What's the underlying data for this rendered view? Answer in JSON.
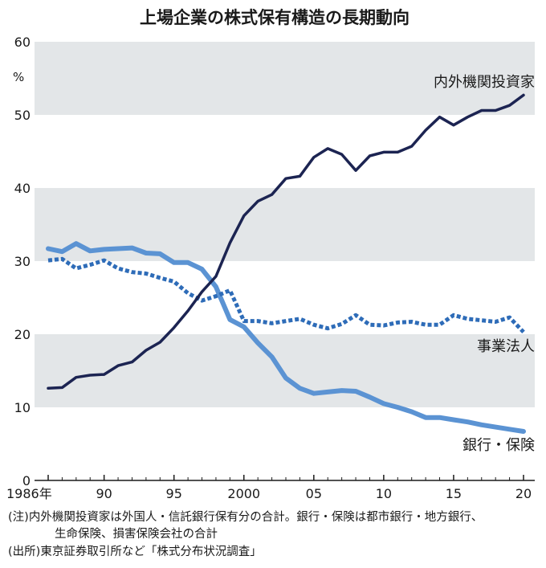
{
  "chart_data": {
    "type": "line",
    "title": "上場企業の株式保有構造の長期動向",
    "ylabel": "%",
    "ylim": [
      0,
      60
    ],
    "yticks": [
      "0",
      "10",
      "20",
      "30",
      "40",
      "50",
      "60"
    ],
    "xlim": [
      1986,
      2020
    ],
    "xticks": [
      {
        "x": 1986,
        "label": "1986年"
      },
      {
        "x": 1990,
        "label": "90"
      },
      {
        "x": 1995,
        "label": "95"
      },
      {
        "x": 2000,
        "label": "2000"
      },
      {
        "x": 2005,
        "label": "05"
      },
      {
        "x": 2010,
        "label": "10"
      },
      {
        "x": 2015,
        "label": "15"
      },
      {
        "x": 2020,
        "label": "20"
      }
    ],
    "grid_bands": "alternating gray bands every 10%",
    "x": [
      1986,
      1987,
      1988,
      1989,
      1990,
      1991,
      1992,
      1993,
      1994,
      1995,
      1996,
      1997,
      1998,
      1999,
      2000,
      2001,
      2002,
      2003,
      2004,
      2005,
      2006,
      2007,
      2008,
      2009,
      2010,
      2011,
      2012,
      2013,
      2014,
      2015,
      2016,
      2017,
      2018,
      2019,
      2020
    ],
    "series": [
      {
        "name": "内外機関投資家",
        "color": "#1c2452",
        "style": "solid",
        "values": [
          12.6,
          12.7,
          14.1,
          14.4,
          14.5,
          15.7,
          16.2,
          17.8,
          18.9,
          20.9,
          23.2,
          25.8,
          27.9,
          32.5,
          36.2,
          38.2,
          39.1,
          41.3,
          41.6,
          44.2,
          45.4,
          44.6,
          42.4,
          44.4,
          44.9,
          44.9,
          45.7,
          47.9,
          49.7,
          48.6,
          49.7,
          50.6,
          50.6,
          51.3,
          52.7
        ]
      },
      {
        "name": "事業法人",
        "color": "#2e6cb8",
        "style": "dotted",
        "values": [
          30.1,
          30.3,
          29.0,
          29.5,
          30.1,
          29.0,
          28.5,
          28.3,
          27.7,
          27.2,
          25.6,
          24.6,
          25.2,
          26.0,
          21.8,
          21.8,
          21.5,
          21.8,
          22.1,
          21.3,
          20.8,
          21.4,
          22.6,
          21.3,
          21.2,
          21.6,
          21.7,
          21.3,
          21.3,
          22.6,
          22.1,
          21.9,
          21.7,
          22.3,
          20.3
        ]
      },
      {
        "name": "銀行・保険",
        "color": "#5b93d3",
        "style": "solid",
        "values": [
          31.7,
          31.3,
          32.4,
          31.4,
          31.6,
          31.7,
          31.8,
          31.1,
          31.0,
          29.8,
          29.8,
          28.9,
          26.5,
          22.0,
          21.0,
          18.8,
          16.9,
          14.0,
          12.6,
          11.9,
          12.1,
          12.3,
          12.2,
          11.4,
          10.5,
          10.0,
          9.4,
          8.6,
          8.6,
          8.3,
          8.0,
          7.6,
          7.3,
          7.0,
          6.7
        ]
      }
    ]
  },
  "notes": {
    "line1": "(注)内外機関投資家は外国人・信託銀行保有分の合計。銀行・保険は都市銀行・地方銀行、",
    "line2": "生命保険、損害保険会社の合計",
    "line3": "(出所)東京証券取引所など「株式分布状況調査」"
  }
}
